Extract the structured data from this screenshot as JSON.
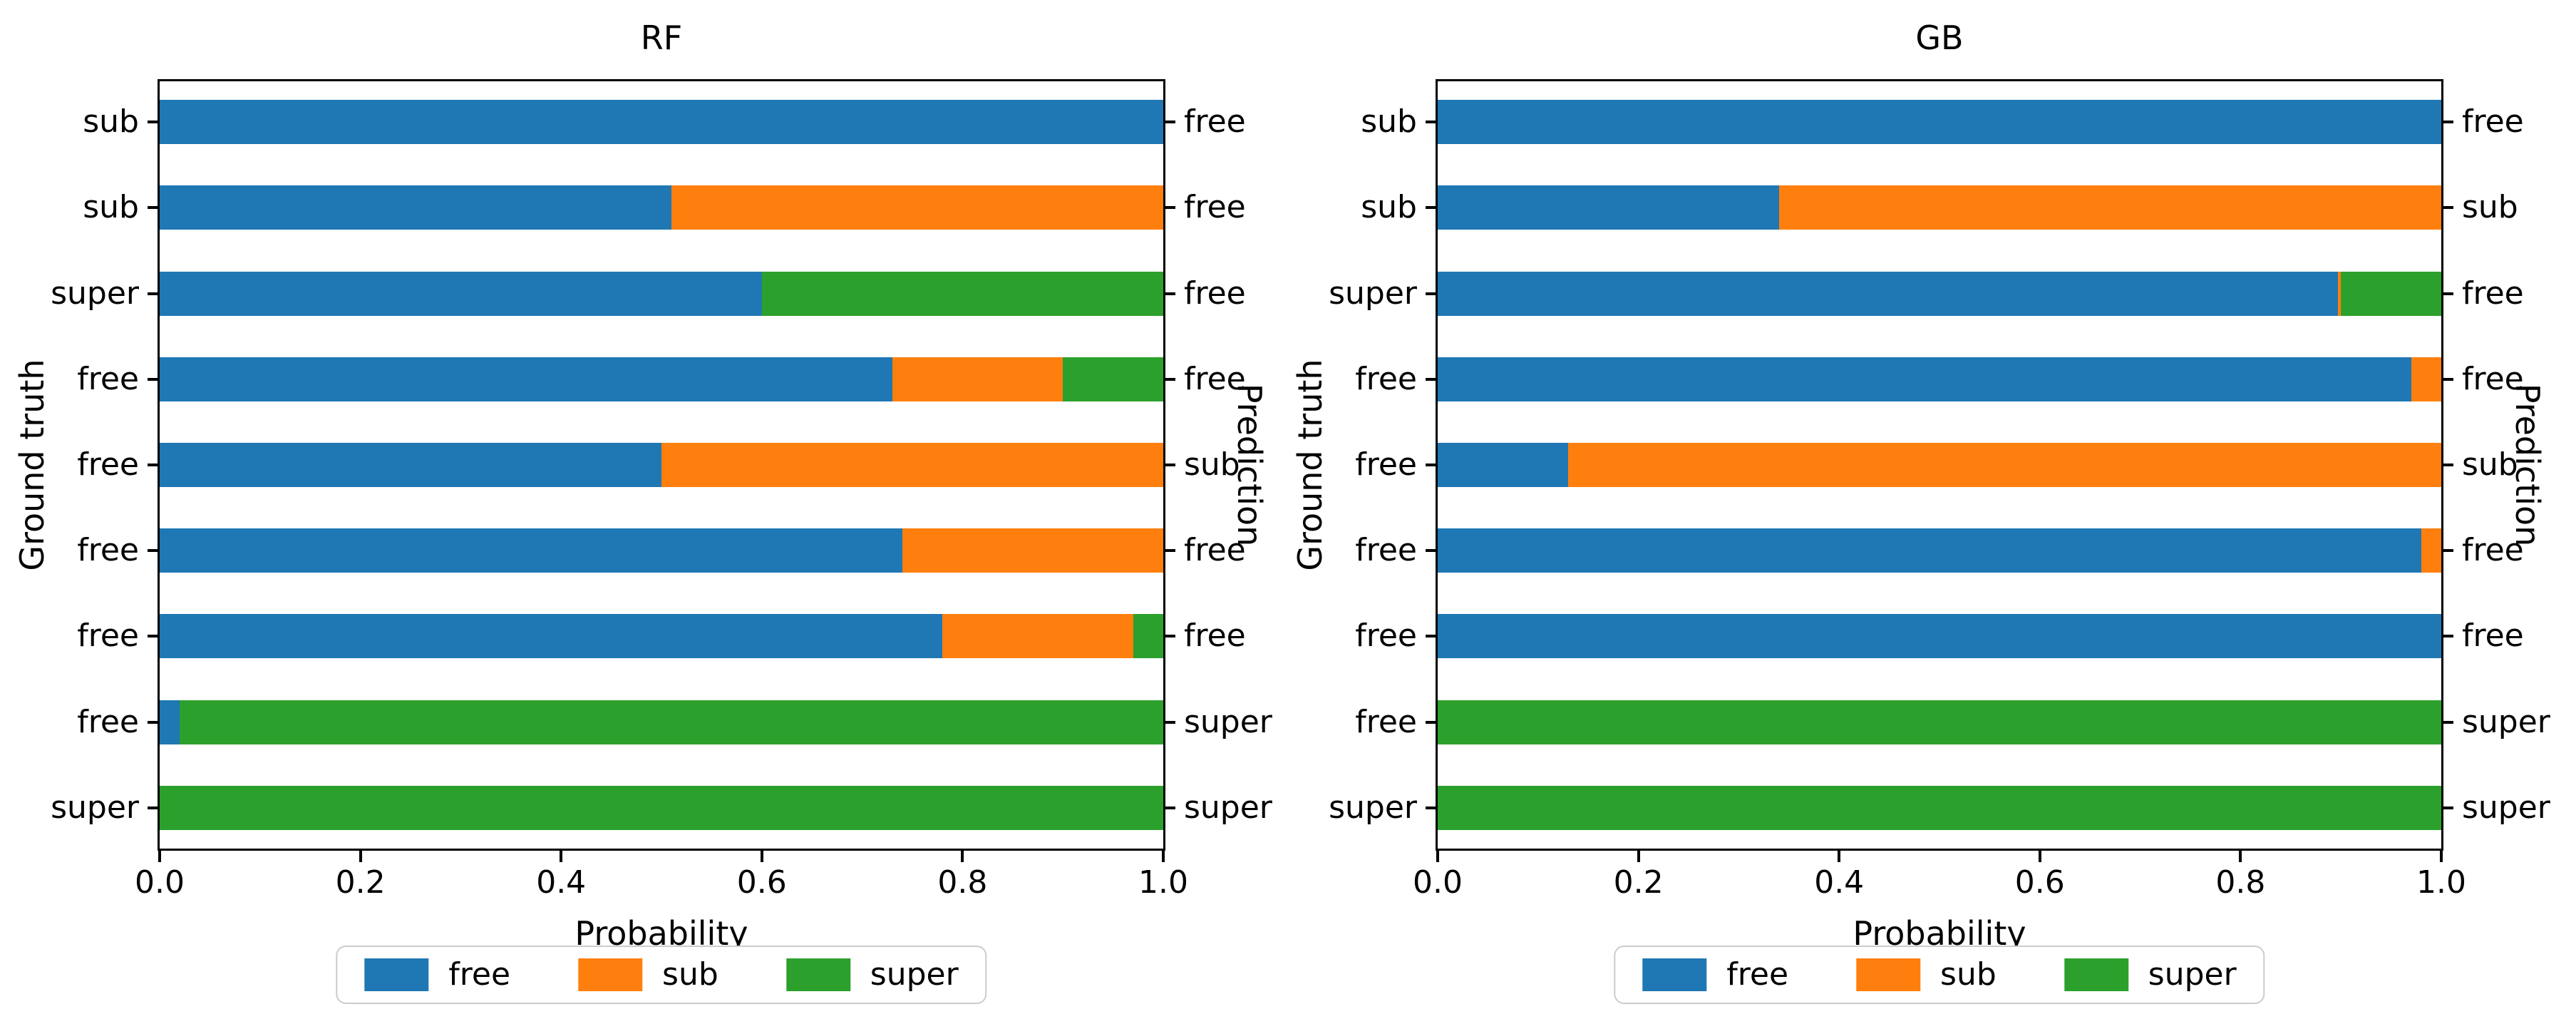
{
  "figure": {
    "xlabel": "Probability",
    "ylabel_left": "Ground truth",
    "ylabel_right": "Prediction",
    "xticks": [
      "0.0",
      "0.2",
      "0.4",
      "0.6",
      "0.8",
      "1.0"
    ],
    "colors": {
      "free": "#1f77b4",
      "sub": "#ff7f0e",
      "super": "#2ca02c"
    },
    "legend": [
      {
        "label": "free",
        "color": "#1f77b4"
      },
      {
        "label": "sub",
        "color": "#ff7f0e"
      },
      {
        "label": "super",
        "color": "#2ca02c"
      }
    ]
  },
  "chart_data": [
    {
      "type": "bar",
      "orientation": "horizontal",
      "stacked": true,
      "title": "RF",
      "xlabel": "Probability",
      "xlim": [
        0,
        1
      ],
      "ylabel_left": "Ground truth",
      "ylabel_right": "Prediction",
      "series_order": [
        "free",
        "sub",
        "super"
      ],
      "legend_position": "bottom-center",
      "rows": [
        {
          "ground_truth": "sub",
          "prediction": "free",
          "free": 1.0,
          "sub": 0.0,
          "super": 0.0
        },
        {
          "ground_truth": "sub",
          "prediction": "free",
          "free": 0.51,
          "sub": 0.49,
          "super": 0.0
        },
        {
          "ground_truth": "super",
          "prediction": "free",
          "free": 0.6,
          "sub": 0.0,
          "super": 0.4
        },
        {
          "ground_truth": "free",
          "prediction": "free",
          "free": 0.73,
          "sub": 0.17,
          "super": 0.1
        },
        {
          "ground_truth": "free",
          "prediction": "sub",
          "free": 0.5,
          "sub": 0.5,
          "super": 0.0
        },
        {
          "ground_truth": "free",
          "prediction": "free",
          "free": 0.74,
          "sub": 0.26,
          "super": 0.0
        },
        {
          "ground_truth": "free",
          "prediction": "free",
          "free": 0.78,
          "sub": 0.19,
          "super": 0.03
        },
        {
          "ground_truth": "free",
          "prediction": "super",
          "free": 0.02,
          "sub": 0.0,
          "super": 0.98
        },
        {
          "ground_truth": "super",
          "prediction": "super",
          "free": 0.0,
          "sub": 0.0,
          "super": 1.0
        }
      ]
    },
    {
      "type": "bar",
      "orientation": "horizontal",
      "stacked": true,
      "title": "GB",
      "xlabel": "Probability",
      "xlim": [
        0,
        1
      ],
      "ylabel_left": "Ground truth",
      "ylabel_right": "Prediction",
      "series_order": [
        "free",
        "sub",
        "super"
      ],
      "legend_position": "bottom-center",
      "rows": [
        {
          "ground_truth": "sub",
          "prediction": "free",
          "free": 1.0,
          "sub": 0.0,
          "super": 0.0
        },
        {
          "ground_truth": "sub",
          "prediction": "sub",
          "free": 0.34,
          "sub": 0.66,
          "super": 0.0
        },
        {
          "ground_truth": "super",
          "prediction": "free",
          "free": 0.897,
          "sub": 0.003,
          "super": 0.1
        },
        {
          "ground_truth": "free",
          "prediction": "free",
          "free": 0.97,
          "sub": 0.03,
          "super": 0.0
        },
        {
          "ground_truth": "free",
          "prediction": "sub",
          "free": 0.13,
          "sub": 0.87,
          "super": 0.0
        },
        {
          "ground_truth": "free",
          "prediction": "free",
          "free": 0.98,
          "sub": 0.02,
          "super": 0.0
        },
        {
          "ground_truth": "free",
          "prediction": "free",
          "free": 1.0,
          "sub": 0.0,
          "super": 0.0
        },
        {
          "ground_truth": "free",
          "prediction": "super",
          "free": 0.0,
          "sub": 0.0,
          "super": 1.0
        },
        {
          "ground_truth": "super",
          "prediction": "super",
          "free": 0.0,
          "sub": 0.0,
          "super": 1.0
        }
      ]
    }
  ]
}
